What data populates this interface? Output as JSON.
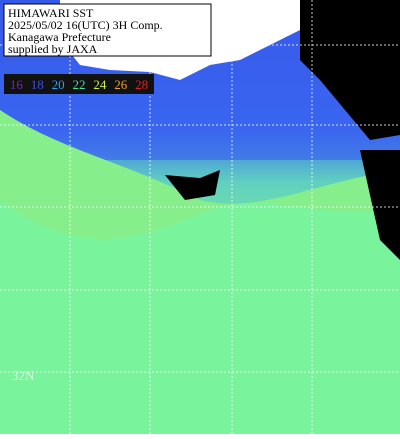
{
  "header": {
    "lines": [
      "HIMAWARI SST",
      "2025/05/02 16(UTC) 3H Comp.",
      "Kanagawa Prefecture",
      "supplied by JAXA"
    ]
  },
  "colorbar": {
    "labels": [
      "16",
      "18",
      "20",
      "22",
      "24",
      "26",
      "28"
    ],
    "colors": [
      "#6a2fb0",
      "#3a4fe0",
      "#2aa0f0",
      "#40e0a0",
      "#c8f040",
      "#f0a020",
      "#e02020"
    ]
  },
  "grid_labels": [
    "32N"
  ]
}
